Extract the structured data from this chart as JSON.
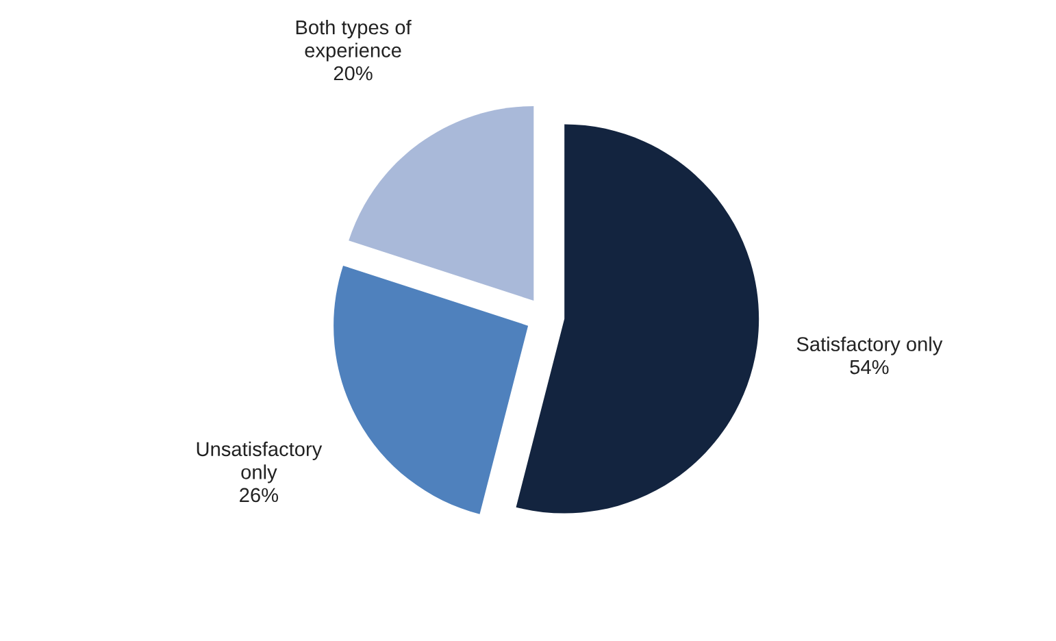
{
  "chart_data": {
    "type": "pie",
    "categories": [
      "Satisfactory only",
      "Unsatisfactory\nonly",
      "Both types of\nexperience"
    ],
    "values": [
      54,
      26,
      20
    ],
    "colors": [
      "#13243f",
      "#4f81bd",
      "#a9b9d9"
    ],
    "value_labels": [
      "54%",
      "26%",
      "20%"
    ]
  }
}
